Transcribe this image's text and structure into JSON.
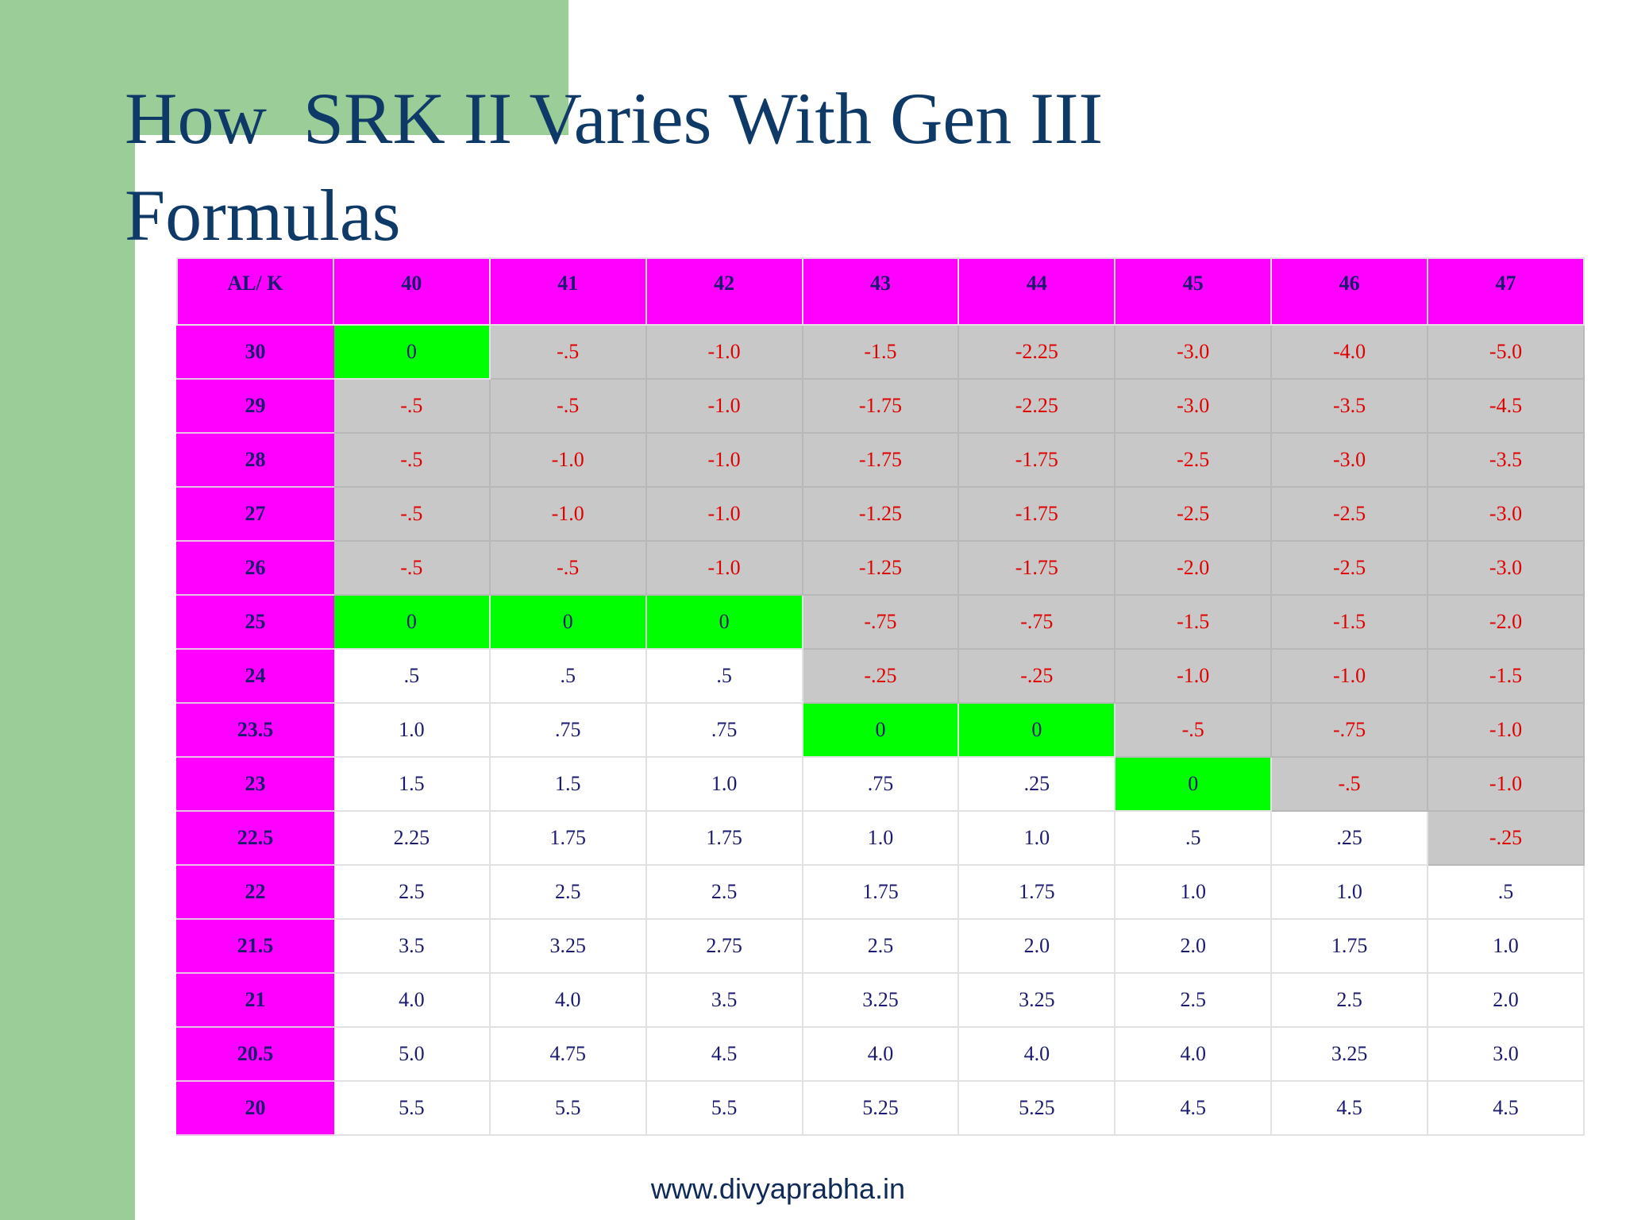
{
  "title": "How  SRK II Varies With Gen III Formulas",
  "table": {
    "header": [
      "AL/ K",
      "40",
      "41",
      "42",
      "43",
      "44",
      "45",
      "46",
      "47"
    ],
    "rows": [
      [
        "30",
        "0",
        "-.5",
        "-1.0",
        "-1.5",
        "-2.25",
        "-3.0",
        "-4.0",
        "-5.0"
      ],
      [
        "29",
        "-.5",
        "-.5",
        "-1.0",
        "-1.75",
        "-2.25",
        "-3.0",
        "-3.5",
        "-4.5"
      ],
      [
        "28",
        "-.5",
        "-1.0",
        "-1.0",
        "-1.75",
        "-1.75",
        "-2.5",
        "-3.0",
        "-3.5"
      ],
      [
        "27",
        "-.5",
        "-1.0",
        "-1.0",
        "-1.25",
        "-1.75",
        "-2.5",
        "-2.5",
        "-3.0"
      ],
      [
        "26",
        "-.5",
        "-.5",
        "-1.0",
        "-1.25",
        "-1.75",
        "-2.0",
        "-2.5",
        "-3.0"
      ],
      [
        "25",
        "0",
        "0",
        "0",
        "-.75",
        "-.75",
        "-1.5",
        "-1.5",
        "-2.0"
      ],
      [
        "24",
        ".5",
        ".5",
        ".5",
        "-.25",
        "-.25",
        "-1.0",
        "-1.0",
        "-1.5"
      ],
      [
        "23.5",
        "1.0",
        ".75",
        ".75",
        "0",
        "0",
        "-.5",
        "-.75",
        "-1.0"
      ],
      [
        "23",
        "1.5",
        "1.5",
        "1.0",
        ".75",
        ".25",
        "0",
        "-.5",
        "-1.0"
      ],
      [
        "22.5",
        "2.25",
        "1.75",
        "1.75",
        "1.0",
        "1.0",
        ".5",
        ".25",
        "-.25"
      ],
      [
        "22",
        "2.5",
        "2.5",
        "2.5",
        "1.75",
        "1.75",
        "1.0",
        "1.0",
        ".5"
      ],
      [
        "21.5",
        "3.5",
        "3.25",
        "2.75",
        "2.5",
        "2.0",
        "2.0",
        "1.75",
        "1.0"
      ],
      [
        "21",
        "4.0",
        "4.0",
        "3.5",
        "3.25",
        "3.25",
        "2.5",
        "2.5",
        "2.0"
      ],
      [
        "20.5",
        "5.0",
        "4.75",
        "4.5",
        "4.0",
        "4.0",
        "4.0",
        "3.25",
        "3.0"
      ],
      [
        "20",
        "5.5",
        "5.5",
        "5.5",
        "5.25",
        "5.25",
        "4.5",
        "4.5",
        "4.5"
      ]
    ]
  },
  "footer": "www.divyaprabha.in"
}
